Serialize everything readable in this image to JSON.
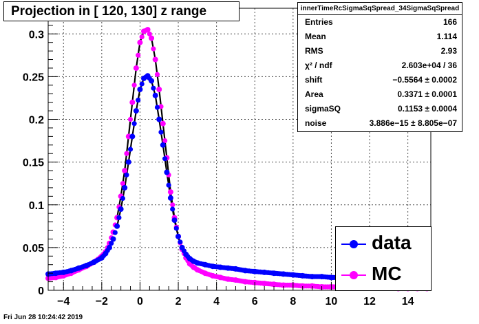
{
  "title": "Projection in [ 120, 130] z range",
  "footer": "Fri Jun 28 10:24:42 2019",
  "stats": {
    "title": "innerTimeRcSigmaSqSpread_34SigmaSqSpread",
    "rows": [
      {
        "label": "Entries",
        "value": "166"
      },
      {
        "label": "Mean",
        "value": "1.114"
      },
      {
        "label": "RMS",
        "value": "2.93"
      },
      {
        "label": "χ² / ndf",
        "value": "2.603e+04 / 36"
      },
      {
        "label": "shift",
        "value": "−0.5564 ± 0.0002"
      },
      {
        "label": "Area",
        "value": "0.3371 ± 0.0001"
      },
      {
        "label": "sigmaSQ",
        "value": "0.1153 ± 0.0004"
      },
      {
        "label": "noise",
        "value": "3.886e−15 ± 8.805e−07"
      }
    ]
  },
  "legend": [
    {
      "label": "data",
      "color": "#0000ff"
    },
    {
      "label": "MC",
      "color": "#ff00ff"
    }
  ],
  "chart_data": {
    "type": "scatter",
    "title": "Projection in [ 120, 130] z range",
    "xlim": [
      -4.8,
      15.2
    ],
    "ylim": [
      0,
      0.33
    ],
    "xticks": [
      "−4",
      "−2",
      "0",
      "2",
      "4",
      "6",
      "8",
      "10",
      "12",
      "14"
    ],
    "xtick_values": [
      -4,
      -2,
      0,
      2,
      4,
      6,
      8,
      10,
      12,
      14
    ],
    "yticks": [
      "0",
      "0.05",
      "0.1",
      "0.15",
      "0.2",
      "0.25",
      "0.3"
    ],
    "ytick_values": [
      0,
      0.05,
      0.1,
      0.15,
      0.2,
      0.25,
      0.3
    ],
    "grid": true,
    "series": [
      {
        "name": "data",
        "color": "#0000ff",
        "x": [
          -4.8,
          -4.4,
          -4.0,
          -3.6,
          -3.2,
          -2.8,
          -2.4,
          -2.0,
          -1.8,
          -1.6,
          -1.4,
          -1.2,
          -1.0,
          -0.8,
          -0.6,
          -0.4,
          -0.2,
          0.0,
          0.2,
          0.4,
          0.6,
          0.8,
          1.0,
          1.2,
          1.4,
          1.6,
          1.8,
          2.0,
          2.2,
          2.4,
          2.6,
          2.8,
          3.0,
          3.4,
          3.8,
          4.2,
          4.6,
          5.0,
          5.5,
          6.0,
          6.5,
          7.0,
          7.5,
          8.0,
          8.5,
          9.0,
          9.5,
          10.0,
          10.5,
          11.0,
          11.5,
          12.0,
          12.5,
          13.0,
          13.5,
          14.0,
          14.5,
          15.0
        ],
        "y": [
          0.019,
          0.02,
          0.021,
          0.023,
          0.026,
          0.029,
          0.033,
          0.038,
          0.043,
          0.05,
          0.06,
          0.075,
          0.095,
          0.12,
          0.15,
          0.18,
          0.21,
          0.235,
          0.248,
          0.251,
          0.245,
          0.228,
          0.2,
          0.17,
          0.138,
          0.108,
          0.082,
          0.063,
          0.05,
          0.042,
          0.037,
          0.034,
          0.032,
          0.03,
          0.028,
          0.027,
          0.026,
          0.025,
          0.023,
          0.022,
          0.021,
          0.02,
          0.019,
          0.018,
          0.017,
          0.016,
          0.016,
          0.015,
          0.015,
          0.014,
          0.014,
          0.013,
          0.013,
          0.013,
          0.012,
          0.012,
          0.012,
          0.012
        ]
      },
      {
        "name": "MC",
        "color": "#ff00ff",
        "x": [
          -4.8,
          -4.4,
          -4.0,
          -3.6,
          -3.2,
          -2.8,
          -2.4,
          -2.0,
          -1.8,
          -1.6,
          -1.4,
          -1.2,
          -1.0,
          -0.8,
          -0.6,
          -0.4,
          -0.2,
          0.0,
          0.2,
          0.4,
          0.6,
          0.8,
          1.0,
          1.2,
          1.4,
          1.6,
          1.8,
          2.0,
          2.2,
          2.4,
          2.6,
          2.8,
          3.0,
          3.4,
          3.8,
          4.2,
          4.6,
          5.0,
          5.5,
          6.0,
          6.5,
          7.0,
          7.5,
          8.0,
          8.5,
          9.0,
          9.5,
          10.0,
          10.5,
          11.0,
          11.5,
          12.0,
          12.5,
          13.0,
          13.5,
          14.0,
          14.5,
          15.0
        ],
        "y": [
          0.014,
          0.015,
          0.017,
          0.02,
          0.024,
          0.028,
          0.033,
          0.04,
          0.045,
          0.055,
          0.068,
          0.085,
          0.11,
          0.14,
          0.18,
          0.22,
          0.26,
          0.29,
          0.303,
          0.305,
          0.295,
          0.27,
          0.235,
          0.195,
          0.155,
          0.115,
          0.085,
          0.063,
          0.048,
          0.038,
          0.031,
          0.027,
          0.024,
          0.02,
          0.017,
          0.015,
          0.013,
          0.012,
          0.01,
          0.009,
          0.008,
          0.007,
          0.006,
          0.006,
          0.005,
          0.005,
          0.004,
          0.004,
          0.004,
          0.003,
          0.003,
          0.003,
          0.003,
          0.003,
          0.002,
          0.002,
          0.002,
          0.002
        ]
      }
    ],
    "fits": [
      {
        "name": "data fit",
        "color": "#000000",
        "peak_x": 0.4,
        "peak_y": 0.25
      },
      {
        "name": "MC fit",
        "color": "#000000",
        "peak_x": 0.4,
        "peak_y": 0.305
      }
    ]
  }
}
